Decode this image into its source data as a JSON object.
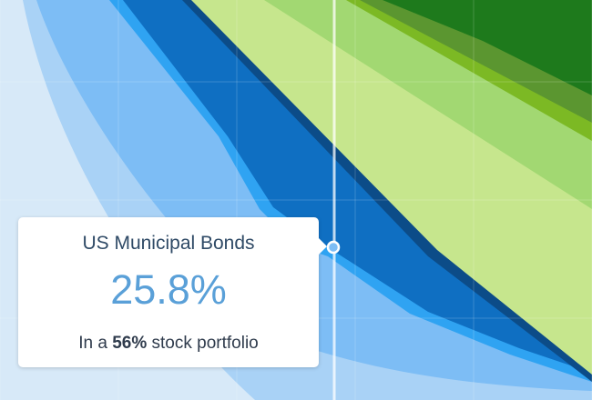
{
  "tooltip": {
    "title": "US Municipal Bonds",
    "value": "25.8%",
    "subtitle_prefix": "In a ",
    "subtitle_bold": "56%",
    "subtitle_suffix": " stock portfolio"
  },
  "chart_data": {
    "type": "area",
    "stacked": true,
    "selected_series": "US Municipal Bonds",
    "selected_value_percent": 25.8,
    "selected_stock_allocation_percent": 56,
    "grid": true,
    "colors": {
      "band_1": "#d7e9f8",
      "band_2": "#a9d2f6",
      "band_3": "#7dbdf5",
      "band_4": "#2fa3f2",
      "band_5": "#0f6fc2",
      "band_6": "#0c4c88",
      "band_7": "#c6e68d",
      "band_8": "#a2d872",
      "band_9": "#7cb924",
      "band_10": "#5b9630",
      "band_11": "#1e7a1c"
    }
  }
}
